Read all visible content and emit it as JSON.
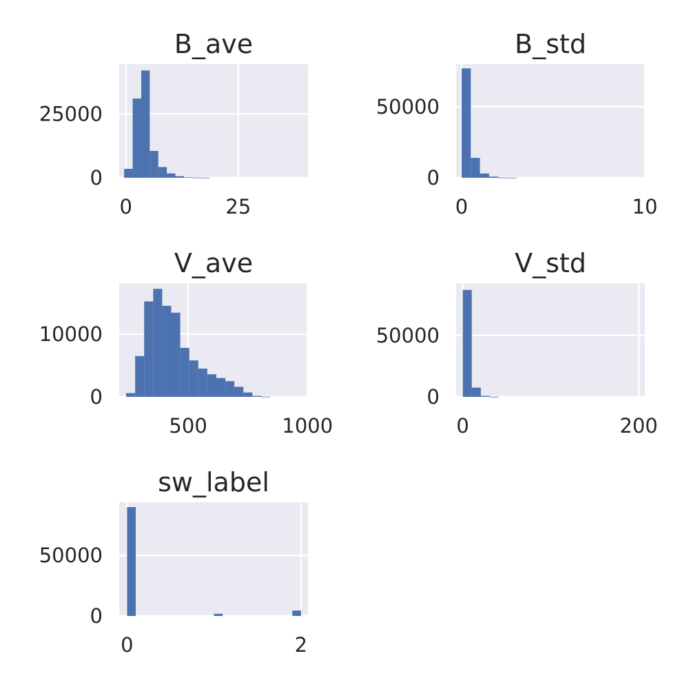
{
  "colors": {
    "background": "#ffffff",
    "axes_face": "#eaeaf2",
    "grid": "#ffffff",
    "bar": "#4c72b0",
    "text": "#262626"
  },
  "chart_data": [
    {
      "type": "bar",
      "title": "B_ave",
      "bin_start": -0.4,
      "bin_width": 1.9,
      "values": [
        3500,
        31000,
        42000,
        10500,
        4200,
        1700,
        600,
        200,
        80,
        30
      ],
      "xlim": [
        -1.5,
        40.5
      ],
      "ylim": [
        0,
        44500
      ],
      "xticks": [
        0,
        25
      ],
      "xtick_labels": [
        "0",
        "25"
      ],
      "yticks": [
        0,
        25000
      ],
      "ytick_labels": [
        "0",
        "25000"
      ],
      "grid": true
    },
    {
      "type": "bar",
      "title": "B_std",
      "bin_start": 0,
      "bin_width": 0.5,
      "values": [
        77000,
        14000,
        3000,
        800,
        150,
        50
      ],
      "xlim": [
        -0.3,
        10.0
      ],
      "ylim": [
        0,
        80000
      ],
      "xticks": [
        0,
        10
      ],
      "xtick_labels": [
        "0",
        "10"
      ],
      "yticks": [
        0,
        50000
      ],
      "ytick_labels": [
        "0",
        "50000"
      ],
      "grid": true
    },
    {
      "type": "bar",
      "title": "V_ave",
      "bin_start": 240,
      "bin_width": 37.8,
      "values": [
        600,
        6500,
        15200,
        17200,
        14500,
        13400,
        7800,
        5800,
        4500,
        3600,
        3000,
        2500,
        1600,
        700,
        150,
        30
      ],
      "xlim": [
        211,
        1002
      ],
      "ylim": [
        0,
        18100
      ],
      "xticks": [
        500,
        1000
      ],
      "xtick_labels": [
        "500",
        "1000"
      ],
      "yticks": [
        0,
        10000
      ],
      "ytick_labels": [
        "0",
        "10000"
      ],
      "grid": true
    },
    {
      "type": "bar",
      "title": "V_std",
      "bin_start": 0,
      "bin_width": 10.3,
      "values": [
        87000,
        7500,
        800,
        50
      ],
      "xlim": [
        -7.5,
        207
      ],
      "ylim": [
        0,
        92500
      ],
      "xticks": [
        0,
        200
      ],
      "xtick_labels": [
        "0",
        "200"
      ],
      "yticks": [
        0,
        50000
      ],
      "ytick_labels": [
        "0",
        "50000"
      ],
      "grid": true
    },
    {
      "type": "bar",
      "title": "sw_label",
      "bin_start": 0,
      "bin_width": 0.1,
      "values": [
        90000,
        0,
        0,
        0,
        0,
        0,
        0,
        0,
        0,
        0,
        1800,
        0,
        0,
        0,
        0,
        0,
        0,
        0,
        0,
        4500
      ],
      "xlim": [
        -0.09,
        2.08
      ],
      "ylim": [
        0,
        94000
      ],
      "xticks": [
        0,
        2
      ],
      "xtick_labels": [
        "0",
        "2"
      ],
      "yticks": [
        0,
        50000
      ],
      "ytick_labels": [
        "0",
        "50000"
      ],
      "grid": true
    }
  ]
}
